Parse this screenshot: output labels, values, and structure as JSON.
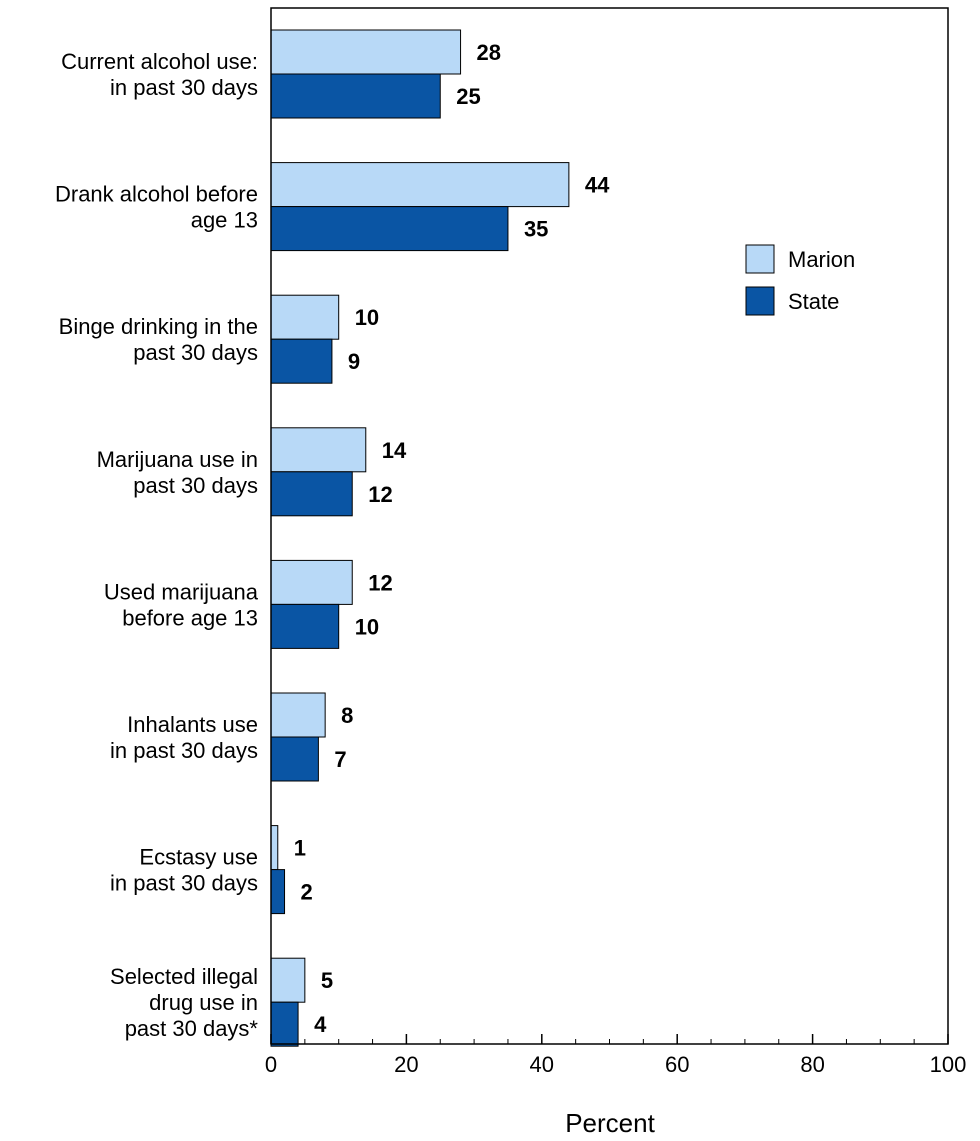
{
  "chart_data": {
    "type": "bar",
    "orientation": "horizontal",
    "categories": [
      [
        "Current alcohol use:",
        "in past 30 days"
      ],
      [
        "Drank alcohol before",
        "age 13"
      ],
      [
        "Binge drinking in the",
        "past 30 days"
      ],
      [
        "Marijuana use in",
        "past 30 days"
      ],
      [
        "Used marijuana",
        "before age 13"
      ],
      [
        "Inhalants use",
        "in past 30 days"
      ],
      [
        "Ecstasy use",
        "in past 30 days"
      ],
      [
        "Selected illegal",
        "drug use in",
        "past 30 days*"
      ]
    ],
    "series": [
      {
        "name": "Marion",
        "color": "#b8d9f7",
        "values": [
          28,
          44,
          10,
          14,
          12,
          8,
          1,
          5
        ],
        "value_labels": [
          "28",
          "44",
          "10",
          "14",
          "12",
          "8",
          "1",
          "5"
        ]
      },
      {
        "name": "State",
        "color": "#0a55a4",
        "values": [
          25,
          35,
          9,
          12,
          10,
          7,
          2,
          4
        ],
        "value_labels": [
          "25",
          "35",
          "9",
          "12",
          "10",
          "7",
          "2",
          "4"
        ]
      }
    ],
    "xlabel": "Percent",
    "xlim": [
      0,
      100
    ],
    "xticks": [
      0,
      20,
      40,
      60,
      80,
      100
    ],
    "xtick_labels": [
      "0",
      "20",
      "40",
      "60",
      "80",
      "100"
    ],
    "grid": false,
    "legend_position": "right"
  }
}
